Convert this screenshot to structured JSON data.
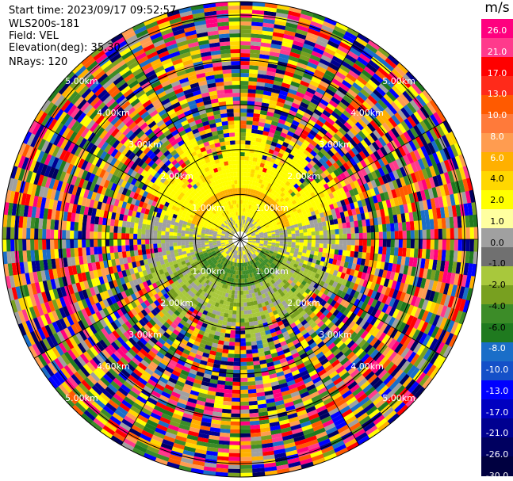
{
  "info": {
    "start_time": "Start time: 2023/09/17 09:52:57",
    "instrument": "WLS200s-181",
    "field": "Field: VEL",
    "elevation": "Elevation(deg): 35.30",
    "nrays": "NRays: 120"
  },
  "colorbar": {
    "unit": "m/s",
    "labels": [
      "26.0",
      "21.0",
      "17.0",
      "13.0",
      "10.0",
      "8.0",
      "6.0",
      "4.0",
      "2.0",
      "1.0",
      "0.0",
      "-1.0",
      "-2.0",
      "-4.0",
      "-6.0",
      "-8.0",
      "-10.0",
      "-13.0",
      "-17.0",
      "-21.0",
      "-26.0",
      "-30.0"
    ],
    "colors": [
      "#ff007f",
      "#ff3a8c",
      "#ff0000",
      "#ff2a1a",
      "#ff5a00",
      "#ff7a3a",
      "#ff9c50",
      "#ffb000",
      "#ffd700",
      "#ffff00",
      "#ffffa0",
      "#a0a0a0",
      "#707070",
      "#a8c83c",
      "#78a020",
      "#3c8c28",
      "#1f7a1f",
      "#1a6ec8",
      "#1450c8",
      "#0000ff",
      "#0000c0",
      "#000090",
      "#000060",
      "#000040"
    ]
  },
  "range_labels": [
    "1.00km",
    "2.00km",
    "3.00km",
    "4.00km",
    "5.00km"
  ],
  "plot": {
    "rings_km": [
      1,
      2,
      3,
      4,
      5
    ],
    "max_range_km": 5.3,
    "ray_lines": 12
  }
}
